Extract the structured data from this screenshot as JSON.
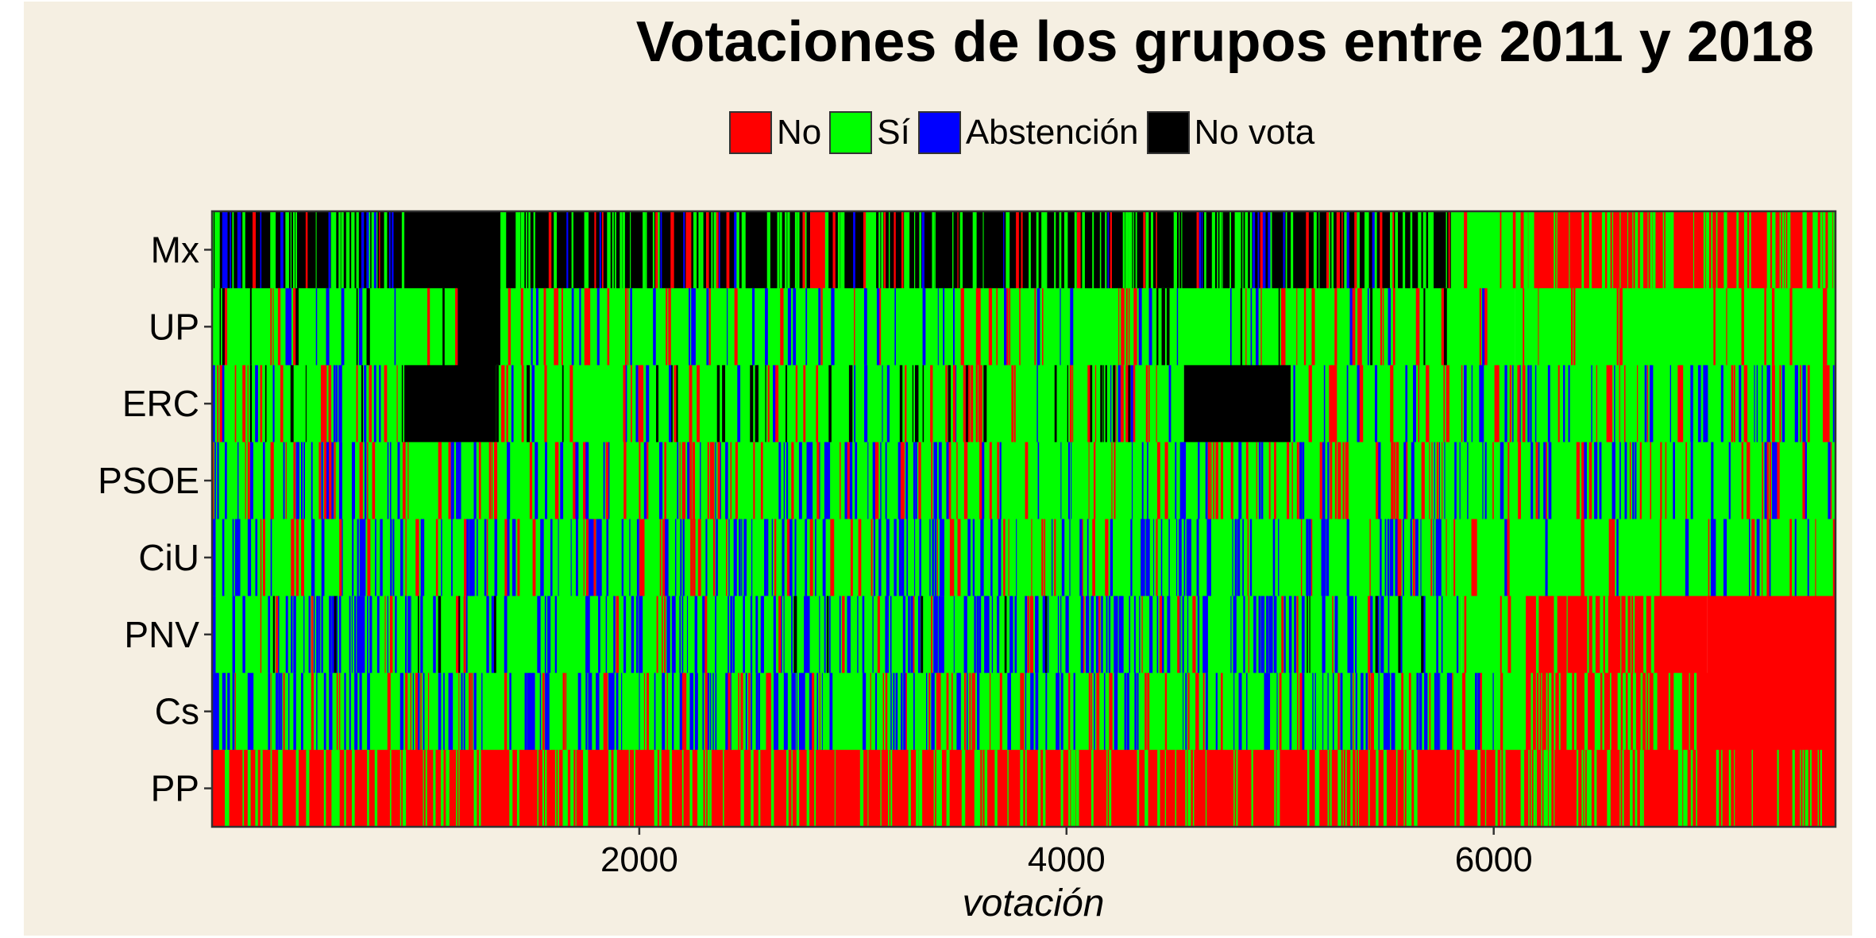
{
  "chart_data": {
    "type": "heatmap",
    "title": "Votaciones de los grupos entre 2011 y 2018",
    "xlabel": "votación",
    "ylabel": "",
    "xlim": [
      0,
      7600
    ],
    "x_ticks": [
      2000,
      4000,
      6000
    ],
    "x_tick_labels": [
      "2000",
      "4000",
      "6000"
    ],
    "legend_position": "top",
    "legend": [
      {
        "label": "No",
        "color": "#ff0000"
      },
      {
        "label": "Sí",
        "color": "#00ff00"
      },
      {
        "label": "Abstención",
        "color": "#0000ff"
      },
      {
        "label": "No vota",
        "color": "#000000"
      }
    ],
    "categories_y": [
      "Mx",
      "UP",
      "ERC",
      "PSOE",
      "CiU",
      "PNV",
      "Cs",
      "PP"
    ],
    "rows": [
      {
        "group": "Mx",
        "segments": [
          {
            "start": 0,
            "end": 900,
            "dominant": "No vota",
            "mix": {
              "No vota": 0.45,
              "Sí": 0.3,
              "Abstención": 0.15,
              "No": 0.1
            }
          },
          {
            "start": 900,
            "end": 1350,
            "dominant": "No vota",
            "mix": {
              "No vota": 1
            }
          },
          {
            "start": 1350,
            "end": 2800,
            "dominant": "No vota",
            "mix": {
              "No vota": 0.55,
              "Sí": 0.3,
              "Abstención": 0.05,
              "No": 0.1
            }
          },
          {
            "start": 2800,
            "end": 2870,
            "dominant": "No",
            "mix": {
              "No": 1
            }
          },
          {
            "start": 2870,
            "end": 5800,
            "dominant": "No vota",
            "mix": {
              "No vota": 0.5,
              "Sí": 0.35,
              "Abstención": 0.05,
              "No": 0.1
            }
          },
          {
            "start": 5800,
            "end": 6150,
            "dominant": "Sí",
            "mix": {
              "Sí": 0.9,
              "No": 0.1
            }
          },
          {
            "start": 6150,
            "end": 7600,
            "dominant": "No",
            "mix": {
              "No": 0.55,
              "Sí": 0.45
            }
          }
        ]
      },
      {
        "group": "UP",
        "segments": [
          {
            "start": 0,
            "end": 1150,
            "dominant": "Sí",
            "mix": {
              "Sí": 0.75,
              "No vota": 0.1,
              "No": 0.08,
              "Abstención": 0.07
            }
          },
          {
            "start": 1150,
            "end": 1350,
            "dominant": "No vota",
            "mix": {
              "No vota": 1
            }
          },
          {
            "start": 1350,
            "end": 6100,
            "dominant": "Sí",
            "mix": {
              "Sí": 0.75,
              "No": 0.12,
              "Abstención": 0.1,
              "No vota": 0.03
            }
          },
          {
            "start": 6100,
            "end": 7600,
            "dominant": "Sí",
            "mix": {
              "Sí": 0.9,
              "No": 0.1
            }
          }
        ]
      },
      {
        "group": "ERC",
        "segments": [
          {
            "start": 0,
            "end": 900,
            "dominant": "Sí",
            "mix": {
              "Sí": 0.6,
              "No": 0.2,
              "No vota": 0.12,
              "Abstención": 0.08
            }
          },
          {
            "start": 900,
            "end": 1330,
            "dominant": "No vota",
            "mix": {
              "No vota": 1
            }
          },
          {
            "start": 1330,
            "end": 4550,
            "dominant": "Sí",
            "mix": {
              "Sí": 0.65,
              "No": 0.15,
              "No vota": 0.1,
              "Abstención": 0.1
            }
          },
          {
            "start": 4550,
            "end": 5050,
            "dominant": "No vota",
            "mix": {
              "No vota": 1
            }
          },
          {
            "start": 5050,
            "end": 7600,
            "dominant": "Sí",
            "mix": {
              "Sí": 0.7,
              "No": 0.15,
              "Abstención": 0.15
            }
          }
        ]
      },
      {
        "group": "PSOE",
        "segments": [
          {
            "start": 0,
            "end": 7600,
            "dominant": "Sí",
            "mix": {
              "Sí": 0.65,
              "No": 0.2,
              "Abstención": 0.15
            }
          }
        ]
      },
      {
        "group": "CiU",
        "segments": [
          {
            "start": 0,
            "end": 5800,
            "dominant": "Sí",
            "mix": {
              "Sí": 0.6,
              "Abstención": 0.3,
              "No": 0.1
            }
          },
          {
            "start": 5800,
            "end": 7600,
            "dominant": "Sí",
            "mix": {
              "Sí": 0.8,
              "Abstención": 0.1,
              "No": 0.1
            }
          }
        ]
      },
      {
        "group": "PNV",
        "segments": [
          {
            "start": 0,
            "end": 5850,
            "dominant": "Sí",
            "mix": {
              "Sí": 0.55,
              "Abstención": 0.35,
              "No": 0.07,
              "No vota": 0.03
            }
          },
          {
            "start": 5850,
            "end": 6150,
            "dominant": "Sí",
            "mix": {
              "Sí": 0.9,
              "No": 0.1
            }
          },
          {
            "start": 6150,
            "end": 7000,
            "dominant": "No",
            "mix": {
              "No": 0.85,
              "Sí": 0.15
            }
          },
          {
            "start": 7000,
            "end": 7600,
            "dominant": "No",
            "mix": {
              "No": 1
            }
          }
        ]
      },
      {
        "group": "Cs",
        "segments": [
          {
            "start": 0,
            "end": 6150,
            "dominant": "Sí",
            "mix": {
              "Sí": 0.55,
              "Abstención": 0.3,
              "No": 0.15
            }
          },
          {
            "start": 6150,
            "end": 6950,
            "dominant": "No",
            "mix": {
              "No": 0.55,
              "Sí": 0.45
            }
          },
          {
            "start": 6950,
            "end": 7600,
            "dominant": "No",
            "mix": {
              "No": 1
            }
          }
        ]
      },
      {
        "group": "PP",
        "segments": [
          {
            "start": 0,
            "end": 6150,
            "dominant": "No",
            "mix": {
              "No": 0.75,
              "Sí": 0.25
            }
          },
          {
            "start": 6150,
            "end": 7600,
            "dominant": "No",
            "mix": {
              "No": 0.6,
              "Sí": 0.4
            }
          }
        ]
      }
    ]
  }
}
